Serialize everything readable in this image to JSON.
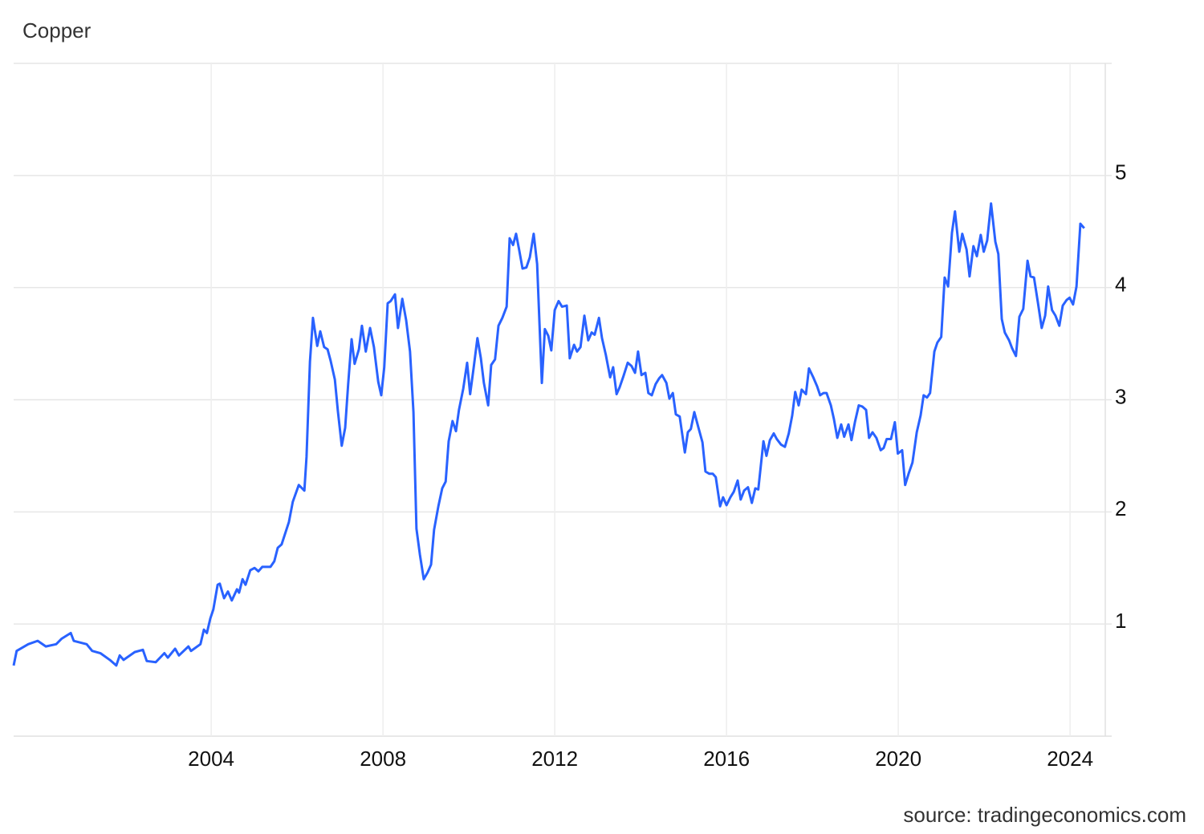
{
  "chart_data": {
    "type": "line",
    "title": "Copper",
    "source": "source: tradingeconomics.com",
    "color": "#2962ff",
    "grid": true,
    "xlim": [
      1999.4,
      2024.82
    ],
    "xticks": [
      2004,
      2008,
      2012,
      2016,
      2020,
      2024
    ],
    "ylim": [
      0,
      6
    ],
    "yticks": [
      1,
      2,
      3,
      4,
      5
    ],
    "x": [
      1999.4,
      1999.47,
      1999.74,
      1999.96,
      2000.15,
      2000.39,
      2000.52,
      2000.73,
      2000.8,
      2001.1,
      2001.23,
      2001.42,
      2001.64,
      2001.79,
      2001.87,
      2001.96,
      2002.22,
      2002.41,
      2002.5,
      2002.71,
      2002.91,
      2002.99,
      2003.16,
      2003.25,
      2003.47,
      2003.53,
      2003.75,
      2003.83,
      2003.9,
      2003.98,
      2004.05,
      2004.15,
      2004.2,
      2004.3,
      2004.39,
      2004.48,
      2004.6,
      2004.65,
      2004.73,
      2004.8,
      2004.91,
      2005.01,
      2005.1,
      2005.19,
      2005.38,
      2005.47,
      2005.55,
      2005.64,
      2005.81,
      2005.9,
      2006.04,
      2006.17,
      2006.22,
      2006.3,
      2006.37,
      2006.47,
      2006.54,
      2006.63,
      2006.71,
      2006.78,
      2006.88,
      2006.95,
      2007.04,
      2007.12,
      2007.19,
      2007.27,
      2007.34,
      2007.44,
      2007.51,
      2007.6,
      2007.7,
      2007.79,
      2007.89,
      2007.96,
      2008.03,
      2008.11,
      2008.18,
      2008.28,
      2008.35,
      2008.45,
      2008.54,
      2008.63,
      2008.71,
      2008.78,
      2008.86,
      2008.95,
      2009.04,
      2009.12,
      2009.19,
      2009.29,
      2009.38,
      2009.46,
      2009.53,
      2009.62,
      2009.7,
      2009.77,
      2009.87,
      2009.96,
      2010.03,
      2010.11,
      2010.2,
      2010.28,
      2010.35,
      2010.45,
      2010.52,
      2010.61,
      2010.69,
      2010.78,
      2010.88,
      2010.95,
      2011.03,
      2011.1,
      2011.17,
      2011.25,
      2011.34,
      2011.42,
      2011.51,
      2011.59,
      2011.7,
      2011.77,
      2011.85,
      2011.92,
      2012.0,
      2012.09,
      2012.17,
      2012.28,
      2012.35,
      2012.45,
      2012.52,
      2012.6,
      2012.69,
      2012.78,
      2012.86,
      2012.93,
      2013.03,
      2013.1,
      2013.19,
      2013.29,
      2013.36,
      2013.44,
      2013.51,
      2013.6,
      2013.7,
      2013.79,
      2013.87,
      2013.94,
      2014.02,
      2014.11,
      2014.18,
      2014.26,
      2014.35,
      2014.43,
      2014.5,
      2014.6,
      2014.67,
      2014.75,
      2014.82,
      2014.91,
      2015.03,
      2015.1,
      2015.17,
      2015.25,
      2015.34,
      2015.44,
      2015.51,
      2015.6,
      2015.68,
      2015.75,
      2015.85,
      2015.92,
      2016.0,
      2016.09,
      2016.17,
      2016.26,
      2016.33,
      2016.41,
      2016.5,
      2016.59,
      2016.67,
      2016.74,
      2016.86,
      2016.93,
      2017.01,
      2017.1,
      2017.17,
      2017.27,
      2017.36,
      2017.45,
      2017.53,
      2017.6,
      2017.68,
      2017.75,
      2017.85,
      2017.92,
      2018.02,
      2018.11,
      2018.18,
      2018.26,
      2018.33,
      2018.43,
      2018.5,
      2018.58,
      2018.67,
      2018.74,
      2018.84,
      2018.91,
      2018.99,
      2019.08,
      2019.16,
      2019.25,
      2019.32,
      2019.4,
      2019.49,
      2019.59,
      2019.66,
      2019.73,
      2019.83,
      2019.92,
      2019.99,
      2020.09,
      2020.16,
      2020.24,
      2020.33,
      2020.43,
      2020.52,
      2020.59,
      2020.67,
      2020.74,
      2020.84,
      2020.91,
      2021.0,
      2021.08,
      2021.16,
      2021.25,
      2021.32,
      2021.42,
      2021.49,
      2021.59,
      2021.66,
      2021.75,
      2021.83,
      2021.92,
      2021.99,
      2022.07,
      2022.16,
      2022.26,
      2022.33,
      2022.41,
      2022.48,
      2022.58,
      2022.65,
      2022.74,
      2022.82,
      2022.91,
      2023.01,
      2023.08,
      2023.16,
      2023.25,
      2023.34,
      2023.42,
      2023.49,
      2023.58,
      2023.66,
      2023.75,
      2023.83,
      2023.92,
      2023.99,
      2024.07,
      2024.15,
      2024.24,
      2024.33
    ],
    "values": [
      0.63,
      0.76,
      0.82,
      0.85,
      0.8,
      0.82,
      0.87,
      0.92,
      0.85,
      0.82,
      0.76,
      0.74,
      0.68,
      0.63,
      0.72,
      0.68,
      0.75,
      0.77,
      0.67,
      0.66,
      0.74,
      0.7,
      0.78,
      0.72,
      0.8,
      0.76,
      0.82,
      0.95,
      0.92,
      1.05,
      1.13,
      1.35,
      1.36,
      1.23,
      1.29,
      1.21,
      1.31,
      1.28,
      1.4,
      1.35,
      1.48,
      1.5,
      1.47,
      1.51,
      1.51,
      1.56,
      1.68,
      1.71,
      1.91,
      2.09,
      2.24,
      2.19,
      2.49,
      3.34,
      3.73,
      3.48,
      3.61,
      3.47,
      3.45,
      3.35,
      3.18,
      2.9,
      2.59,
      2.75,
      3.14,
      3.54,
      3.32,
      3.45,
      3.66,
      3.43,
      3.64,
      3.47,
      3.16,
      3.04,
      3.29,
      3.86,
      3.88,
      3.94,
      3.64,
      3.9,
      3.71,
      3.43,
      2.89,
      1.85,
      1.62,
      1.4,
      1.46,
      1.53,
      1.84,
      2.05,
      2.21,
      2.27,
      2.63,
      2.81,
      2.72,
      2.91,
      3.1,
      3.33,
      3.05,
      3.28,
      3.55,
      3.37,
      3.15,
      2.95,
      3.31,
      3.36,
      3.66,
      3.73,
      3.83,
      4.44,
      4.38,
      4.48,
      4.34,
      4.17,
      4.18,
      4.27,
      4.48,
      4.21,
      3.15,
      3.63,
      3.57,
      3.44,
      3.8,
      3.88,
      3.83,
      3.84,
      3.37,
      3.49,
      3.43,
      3.47,
      3.75,
      3.53,
      3.6,
      3.58,
      3.73,
      3.55,
      3.4,
      3.2,
      3.29,
      3.05,
      3.11,
      3.21,
      3.33,
      3.3,
      3.24,
      3.43,
      3.22,
      3.24,
      3.06,
      3.04,
      3.14,
      3.19,
      3.22,
      3.15,
      3.01,
      3.06,
      2.87,
      2.85,
      2.53,
      2.71,
      2.74,
      2.89,
      2.76,
      2.62,
      2.36,
      2.34,
      2.34,
      2.31,
      2.05,
      2.13,
      2.06,
      2.13,
      2.18,
      2.28,
      2.11,
      2.19,
      2.22,
      2.08,
      2.21,
      2.2,
      2.63,
      2.5,
      2.64,
      2.7,
      2.65,
      2.6,
      2.58,
      2.7,
      2.86,
      3.07,
      2.95,
      3.09,
      3.05,
      3.28,
      3.2,
      3.12,
      3.04,
      3.06,
      3.06,
      2.95,
      2.83,
      2.66,
      2.78,
      2.67,
      2.78,
      2.64,
      2.8,
      2.95,
      2.94,
      2.91,
      2.66,
      2.71,
      2.66,
      2.55,
      2.57,
      2.65,
      2.65,
      2.8,
      2.52,
      2.55,
      2.24,
      2.34,
      2.44,
      2.71,
      2.86,
      3.04,
      3.02,
      3.06,
      3.43,
      3.51,
      3.56,
      4.09,
      4.01,
      4.49,
      4.68,
      4.32,
      4.48,
      4.34,
      4.1,
      4.37,
      4.28,
      4.47,
      4.32,
      4.42,
      4.75,
      4.41,
      4.3,
      3.72,
      3.6,
      3.53,
      3.46,
      3.39,
      3.74,
      3.81,
      4.24,
      4.1,
      4.09,
      3.87,
      3.64,
      3.75,
      4.01,
      3.8,
      3.75,
      3.66,
      3.84,
      3.89,
      3.91,
      3.85,
      4.01,
      4.57,
      4.53
    ]
  }
}
